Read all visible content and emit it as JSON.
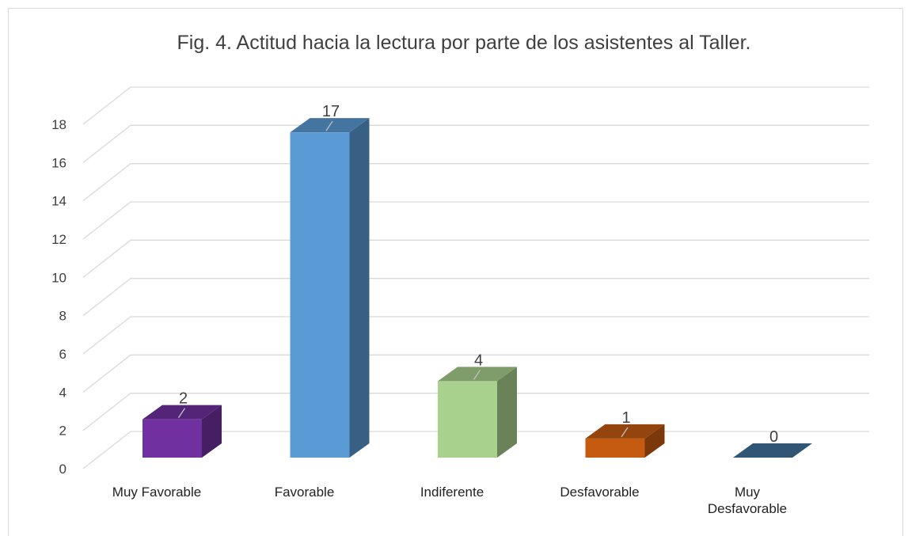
{
  "chart_data": {
    "type": "bar3d",
    "title": "Fig. 4. Actitud hacia la lectura por parte de los asistentes al Taller.",
    "categories": [
      "Muy Favorable",
      "Favorable",
      "Indiferente",
      "Desfavorable",
      "Muy Desfavorable"
    ],
    "values": [
      2,
      17,
      4,
      1,
      0
    ],
    "colors": [
      "#7030a0",
      "#5b9bd5",
      "#a9d18e",
      "#c55a11",
      "#41719c"
    ],
    "ylim": [
      0,
      18
    ],
    "yticks": [
      0,
      2,
      4,
      6,
      8,
      10,
      12,
      14,
      16,
      18
    ],
    "grid": true
  }
}
